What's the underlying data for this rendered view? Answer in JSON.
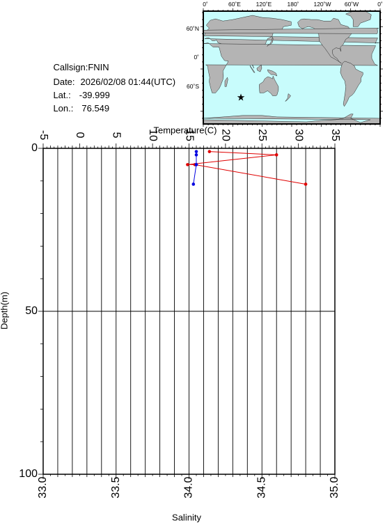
{
  "station": {
    "callsign_label": "Callsign:",
    "callsign": "FNIN",
    "date_label": "Date:",
    "date": "2026/02/08 01:44(UTC)",
    "lat_label": "Lat.:",
    "lat": "-39.999",
    "lon_label": "Lon.:",
    "lon": "76.549"
  },
  "map": {
    "lon_ticks": [
      "0˚",
      "60˚E",
      "120˚E",
      "180˚",
      "120˚W",
      "60˚W",
      "0˚"
    ],
    "lat_ticks": [
      "60˚N",
      "0˚",
      "60˚S"
    ],
    "ocean_color": "#c8fcfc",
    "land_color": "#b4b4b4",
    "marker_color": "#e00000",
    "marker_lat": -39.999,
    "marker_lon": 76.549
  },
  "chart_data": {
    "type": "line",
    "top_axis": {
      "label": "Temperature(C)",
      "range": [
        -5,
        35
      ],
      "ticks": [
        "-5",
        "0",
        "5",
        "10",
        "15",
        "20",
        "25",
        "30",
        "35"
      ]
    },
    "bottom_axis": {
      "label": "Salinity",
      "range": [
        33.0,
        35.0
      ],
      "ticks": [
        "33.0",
        "33.5",
        "34.0",
        "34.5",
        "35.0"
      ]
    },
    "y_axis": {
      "label": "Depth(m)",
      "range": [
        0,
        100
      ],
      "inverted": true,
      "ticks": [
        "0",
        "50",
        "100"
      ]
    },
    "grid": true,
    "series": [
      {
        "axis": "top",
        "color": "#e00000",
        "depth": [
          1,
          2,
          5,
          5,
          11
        ],
        "values": [
          17.8,
          27.0,
          14.8,
          15.8,
          31.0
        ]
      },
      {
        "axis": "bottom",
        "color": "#0000e0",
        "depth": [
          1,
          2,
          5,
          5,
          11
        ],
        "values": [
          34.05,
          34.05,
          34.05,
          34.05,
          34.03
        ]
      }
    ]
  }
}
